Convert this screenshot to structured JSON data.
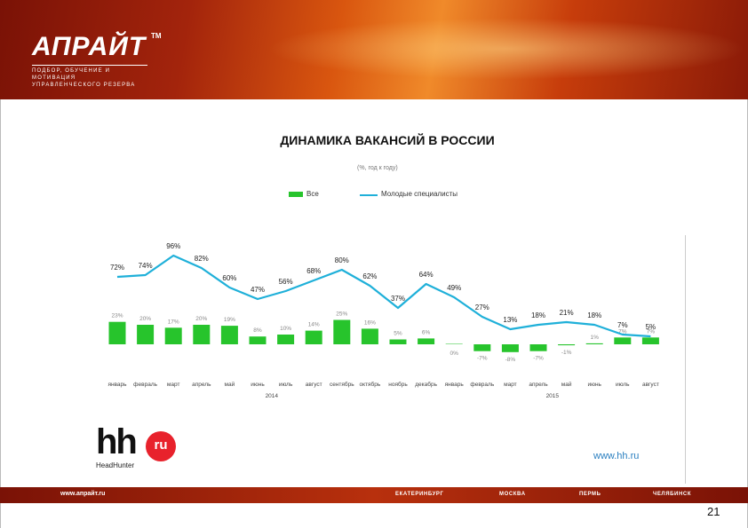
{
  "header": {
    "logo": "АПРАЙТ",
    "logo_tm": "TM",
    "tagline_1": "ПОДБОР, ОБУЧЕНИЕ И МОТИВАЦИЯ",
    "tagline_2": "УПРАВЛЕНЧЕСКОГО РЕЗЕРВА"
  },
  "chart_data": {
    "type": "bar",
    "title": "ДИНАМИКА ВАКАНСИЙ В РОССИИ",
    "subtitle": "(%, год к году)",
    "categories": [
      "январь",
      "февраль",
      "март",
      "апрель",
      "май",
      "июнь",
      "июль",
      "август",
      "сентябрь",
      "октябрь",
      "ноябрь",
      "декабрь",
      "январь",
      "февраль",
      "март",
      "апрель",
      "май",
      "июнь",
      "июль",
      "август"
    ],
    "year_labels": [
      {
        "label": "2014",
        "start": 0,
        "end": 11
      },
      {
        "label": "2015",
        "start": 12,
        "end": 19
      }
    ],
    "series": [
      {
        "name": "Все",
        "type": "bar",
        "color": "#27c42c",
        "values": [
          23,
          20,
          17,
          20,
          19,
          8,
          10,
          14,
          25,
          16,
          5,
          6,
          0,
          -7,
          -8,
          -7,
          -1,
          1,
          7,
          7
        ]
      },
      {
        "name": "Молодые специалисты",
        "type": "line",
        "color": "#1fb0d9",
        "values": [
          72,
          74,
          96,
          82,
          60,
          47,
          56,
          68,
          80,
          62,
          37,
          64,
          49,
          27,
          13,
          18,
          21,
          18,
          7,
          5
        ]
      }
    ],
    "value_labels": {
      "bars": [
        "23%",
        "20%",
        "17%",
        "20%",
        "19%",
        "8%",
        "10%",
        "14%",
        "25%",
        "16%",
        "5%",
        "6%",
        "0%",
        "-7%",
        "-8%",
        "-7%",
        "-1%",
        "1%",
        "7%",
        "7%"
      ],
      "line": [
        "72%",
        "74%",
        "96%",
        "82%",
        "60%",
        "47%",
        "56%",
        "68%",
        "80%",
        "62%",
        "37%",
        "64%",
        "49%",
        "27%",
        "13%",
        "18%",
        "21%",
        "18%",
        "7%",
        "5%"
      ]
    },
    "legend_position": "top",
    "grid": false
  },
  "brand": {
    "hh_text": "hh",
    "hh_badge": "ru",
    "hh_sub": "HeadHunter",
    "hh_url": "www.hh.ru"
  },
  "footer": {
    "url": "www.aпрайт.ru",
    "cities": [
      "ЕКАТЕРИНБУРГ",
      "МОСКВА",
      "ПЕРМЬ",
      "ЧЕЛЯБИНСК"
    ],
    "page_number": "21"
  }
}
